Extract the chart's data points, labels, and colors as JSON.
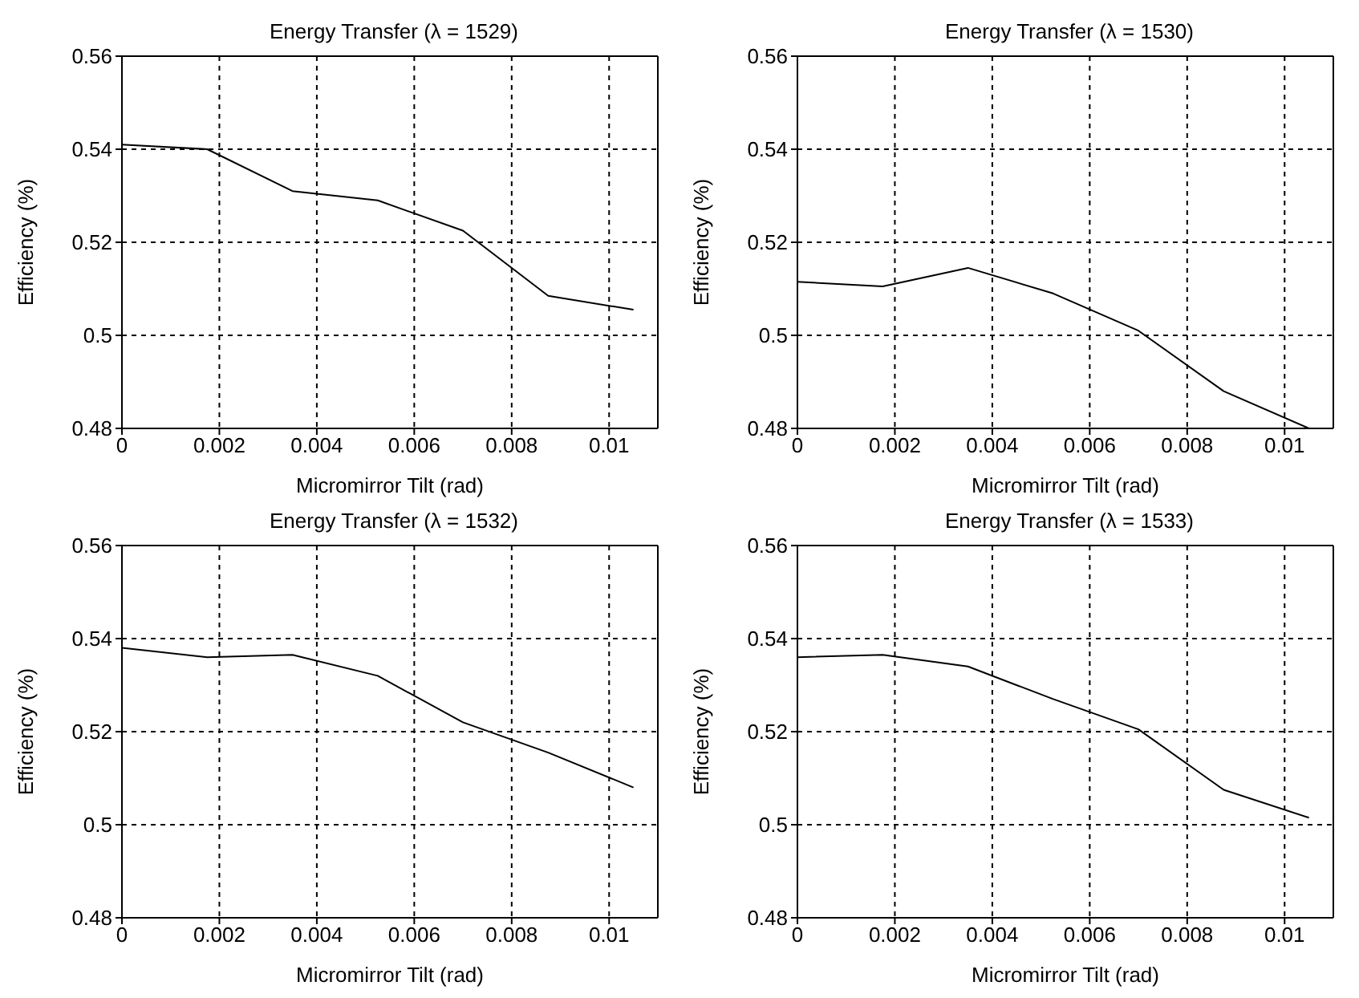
{
  "chart_data": [
    {
      "type": "line",
      "title": "Energy Transfer (λ = 1529)",
      "xlabel": "Micromirror Tilt (rad)",
      "ylabel": "Efficiency (%)",
      "x": [
        0,
        0.00175,
        0.0035,
        0.00525,
        0.007,
        0.00875,
        0.0105
      ],
      "values": [
        0.541,
        0.54,
        0.531,
        0.529,
        0.5225,
        0.5085,
        0.5055
      ],
      "color": "#000000",
      "xlim": [
        0,
        0.011
      ],
      "ylim": [
        0.48,
        0.56
      ],
      "xticks": [
        0,
        0.002,
        0.004,
        0.006,
        0.008,
        0.01
      ],
      "yticks": [
        0.48,
        0.5,
        0.52,
        0.54,
        0.56
      ],
      "grid": true,
      "marker": "none"
    },
    {
      "type": "line",
      "title": "Energy Transfer (λ = 1530)",
      "xlabel": "Micromirror Tilt (rad)",
      "ylabel": "Efficiency (%)",
      "x": [
        0,
        0.00175,
        0.0035,
        0.00525,
        0.007,
        0.00875,
        0.0105
      ],
      "values": [
        0.5115,
        0.5105,
        0.5145,
        0.509,
        0.501,
        0.488,
        0.48
      ],
      "color": "#000000",
      "xlim": [
        0,
        0.011
      ],
      "ylim": [
        0.48,
        0.56
      ],
      "xticks": [
        0,
        0.002,
        0.004,
        0.006,
        0.008,
        0.01
      ],
      "yticks": [
        0.48,
        0.5,
        0.52,
        0.54,
        0.56
      ],
      "grid": true,
      "marker": "none"
    },
    {
      "type": "line",
      "title": "Energy Transfer (λ = 1532)",
      "xlabel": "Micromirror Tilt (rad)",
      "ylabel": "Efficiency (%)",
      "x": [
        0,
        0.00175,
        0.0035,
        0.00525,
        0.007,
        0.00875,
        0.0105
      ],
      "values": [
        0.538,
        0.536,
        0.5365,
        0.532,
        0.522,
        0.5155,
        0.508
      ],
      "color": "#000000",
      "xlim": [
        0,
        0.011
      ],
      "ylim": [
        0.48,
        0.56
      ],
      "xticks": [
        0,
        0.002,
        0.004,
        0.006,
        0.008,
        0.01
      ],
      "yticks": [
        0.48,
        0.5,
        0.52,
        0.54,
        0.56
      ],
      "grid": true,
      "marker": "none"
    },
    {
      "type": "line",
      "title": "Energy Transfer (λ = 1533)",
      "xlabel": "Micromirror Tilt (rad)",
      "ylabel": "Efficiency (%)",
      "x": [
        0,
        0.00175,
        0.0035,
        0.00525,
        0.007,
        0.00875,
        0.0105
      ],
      "values": [
        0.536,
        0.5365,
        0.534,
        0.527,
        0.5205,
        0.5075,
        0.5015
      ],
      "color": "#000000",
      "xlim": [
        0,
        0.011
      ],
      "ylim": [
        0.48,
        0.56
      ],
      "xticks": [
        0,
        0.002,
        0.004,
        0.006,
        0.008,
        0.01
      ],
      "yticks": [
        0.48,
        0.5,
        0.52,
        0.54,
        0.56
      ],
      "grid": true,
      "marker": "none"
    }
  ]
}
